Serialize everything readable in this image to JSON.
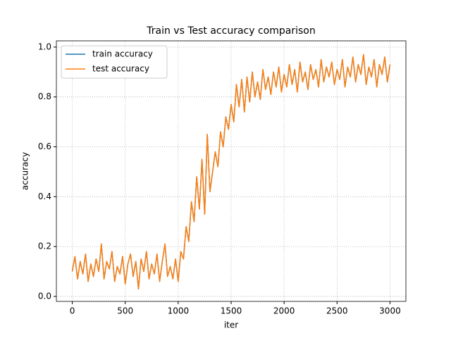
{
  "chart_data": {
    "type": "line",
    "title": "Train vs Test accuracy comparison",
    "x_label": "iter",
    "y_label": "accuracy",
    "x": [
      0,
      25,
      50,
      75,
      100,
      125,
      150,
      175,
      200,
      225,
      250,
      275,
      300,
      325,
      350,
      375,
      400,
      425,
      450,
      475,
      500,
      525,
      550,
      575,
      600,
      625,
      650,
      675,
      700,
      725,
      750,
      775,
      800,
      825,
      850,
      875,
      900,
      925,
      950,
      975,
      1000,
      1025,
      1050,
      1075,
      1100,
      1125,
      1150,
      1175,
      1200,
      1225,
      1250,
      1275,
      1300,
      1325,
      1350,
      1375,
      1400,
      1425,
      1450,
      1475,
      1500,
      1525,
      1550,
      1575,
      1600,
      1625,
      1650,
      1675,
      1700,
      1725,
      1750,
      1775,
      1800,
      1825,
      1850,
      1875,
      1900,
      1925,
      1950,
      1975,
      2000,
      2025,
      2050,
      2075,
      2100,
      2125,
      2150,
      2175,
      2200,
      2225,
      2250,
      2275,
      2300,
      2325,
      2350,
      2375,
      2400,
      2425,
      2450,
      2475,
      2500,
      2525,
      2550,
      2575,
      2600,
      2625,
      2650,
      2675,
      2700,
      2725,
      2750,
      2775,
      2800,
      2825,
      2850,
      2875,
      2900,
      2925,
      2950,
      2975,
      3000
    ],
    "series": [
      {
        "name": "train accuracy",
        "color": "#1f77b4",
        "values": [
          0.1,
          0.16,
          0.07,
          0.14,
          0.09,
          0.17,
          0.06,
          0.13,
          0.08,
          0.15,
          0.1,
          0.21,
          0.07,
          0.14,
          0.11,
          0.18,
          0.06,
          0.12,
          0.09,
          0.16,
          0.05,
          0.13,
          0.17,
          0.08,
          0.14,
          0.03,
          0.15,
          0.1,
          0.18,
          0.07,
          0.13,
          0.09,
          0.17,
          0.06,
          0.14,
          0.21,
          0.08,
          0.12,
          0.07,
          0.15,
          0.06,
          0.18,
          0.15,
          0.28,
          0.22,
          0.38,
          0.3,
          0.48,
          0.35,
          0.55,
          0.33,
          0.65,
          0.42,
          0.5,
          0.58,
          0.52,
          0.66,
          0.6,
          0.72,
          0.67,
          0.77,
          0.7,
          0.85,
          0.76,
          0.87,
          0.74,
          0.88,
          0.78,
          0.9,
          0.8,
          0.86,
          0.79,
          0.91,
          0.83,
          0.88,
          0.81,
          0.9,
          0.84,
          0.92,
          0.82,
          0.89,
          0.84,
          0.93,
          0.85,
          0.91,
          0.82,
          0.94,
          0.86,
          0.9,
          0.83,
          0.93,
          0.87,
          0.91,
          0.84,
          0.95,
          0.86,
          0.92,
          0.88,
          0.94,
          0.85,
          0.91,
          0.87,
          0.95,
          0.84,
          0.92,
          0.88,
          0.96,
          0.86,
          0.93,
          0.89,
          0.97,
          0.85,
          0.92,
          0.88,
          0.95,
          0.84,
          0.93,
          0.89,
          0.96,
          0.86,
          0.93
        ]
      },
      {
        "name": "test accuracy",
        "color": "#ff7f0e",
        "values": [
          0.1,
          0.16,
          0.07,
          0.14,
          0.09,
          0.17,
          0.06,
          0.13,
          0.08,
          0.15,
          0.1,
          0.21,
          0.07,
          0.14,
          0.11,
          0.18,
          0.06,
          0.12,
          0.09,
          0.16,
          0.05,
          0.13,
          0.17,
          0.08,
          0.14,
          0.03,
          0.15,
          0.1,
          0.18,
          0.07,
          0.13,
          0.09,
          0.17,
          0.06,
          0.14,
          0.21,
          0.08,
          0.12,
          0.07,
          0.15,
          0.06,
          0.18,
          0.15,
          0.28,
          0.22,
          0.38,
          0.3,
          0.48,
          0.35,
          0.55,
          0.33,
          0.65,
          0.42,
          0.5,
          0.58,
          0.52,
          0.66,
          0.6,
          0.72,
          0.67,
          0.77,
          0.7,
          0.85,
          0.76,
          0.87,
          0.74,
          0.88,
          0.78,
          0.9,
          0.8,
          0.86,
          0.79,
          0.91,
          0.83,
          0.88,
          0.81,
          0.9,
          0.84,
          0.92,
          0.82,
          0.89,
          0.84,
          0.93,
          0.85,
          0.91,
          0.82,
          0.94,
          0.86,
          0.9,
          0.83,
          0.93,
          0.87,
          0.91,
          0.84,
          0.95,
          0.86,
          0.92,
          0.88,
          0.94,
          0.85,
          0.91,
          0.87,
          0.95,
          0.84,
          0.92,
          0.88,
          0.96,
          0.86,
          0.93,
          0.89,
          0.97,
          0.85,
          0.92,
          0.88,
          0.95,
          0.84,
          0.93,
          0.89,
          0.96,
          0.86,
          0.93
        ]
      }
    ],
    "xlim": [
      -150,
      3150
    ],
    "ylim": [
      -0.02,
      1.025
    ],
    "xticks": [
      0,
      500,
      1000,
      1500,
      2000,
      2500,
      3000
    ],
    "yticks": [
      {
        "value": 0,
        "label": "0.0"
      },
      0.2,
      0.4,
      0.6,
      0.8,
      {
        "value": 1,
        "label": "1.0"
      }
    ],
    "grid": true,
    "legend": "upper left"
  }
}
